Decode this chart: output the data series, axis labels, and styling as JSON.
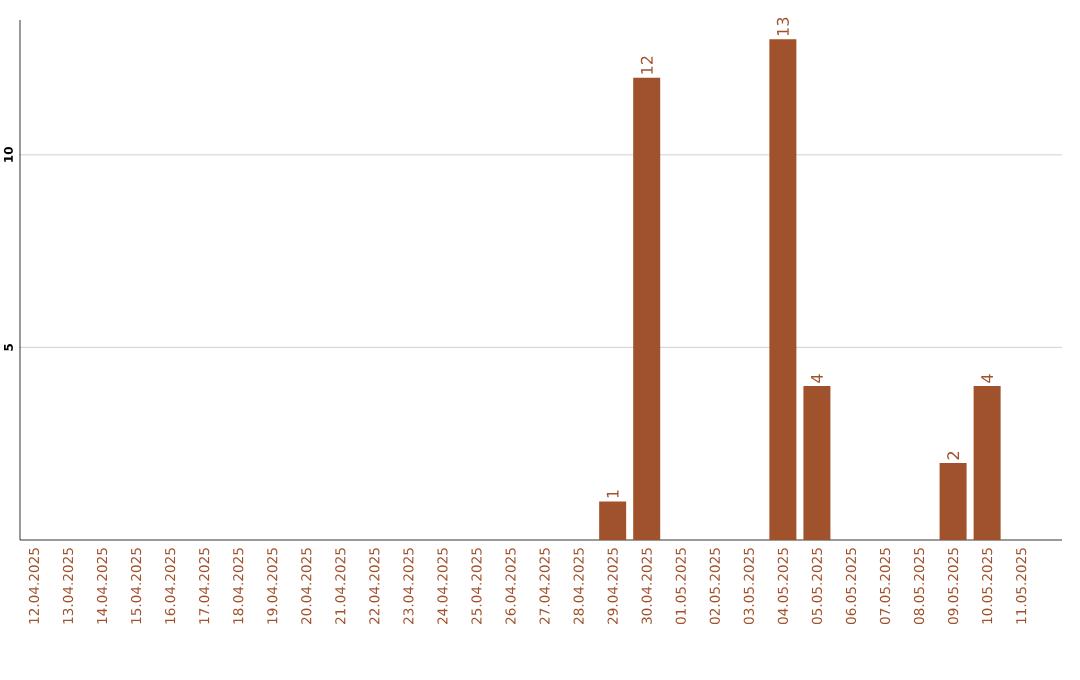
{
  "chart_data": {
    "type": "bar",
    "categories": [
      "12.04.2025",
      "13.04.2025",
      "14.04.2025",
      "15.04.2025",
      "16.04.2025",
      "17.04.2025",
      "18.04.2025",
      "19.04.2025",
      "20.04.2025",
      "21.04.2025",
      "22.04.2025",
      "23.04.2025",
      "24.04.2025",
      "25.04.2025",
      "26.04.2025",
      "27.04.2025",
      "28.04.2025",
      "29.04.2025",
      "30.04.2025",
      "01.05.2025",
      "02.05.2025",
      "03.05.2025",
      "04.05.2025",
      "05.05.2025",
      "06.05.2025",
      "07.05.2025",
      "08.05.2025",
      "09.05.2025",
      "10.05.2025",
      "11.05.2025"
    ],
    "values": [
      0,
      0,
      0,
      0,
      0,
      0,
      0,
      0,
      0,
      0,
      0,
      0,
      0,
      0,
      0,
      0,
      0,
      1,
      12,
      0,
      0,
      0,
      13,
      4,
      0,
      0,
      0,
      2,
      4,
      0
    ],
    "value_labels": [
      null,
      null,
      null,
      null,
      null,
      null,
      null,
      null,
      null,
      null,
      null,
      null,
      null,
      null,
      null,
      null,
      null,
      "1",
      "12",
      null,
      null,
      null,
      "13",
      "4",
      null,
      null,
      null,
      "2",
      "4",
      null
    ],
    "color": "#a0522d",
    "ylim": [
      0,
      13.5
    ],
    "yticks": [
      5,
      10
    ],
    "grid": "y"
  }
}
